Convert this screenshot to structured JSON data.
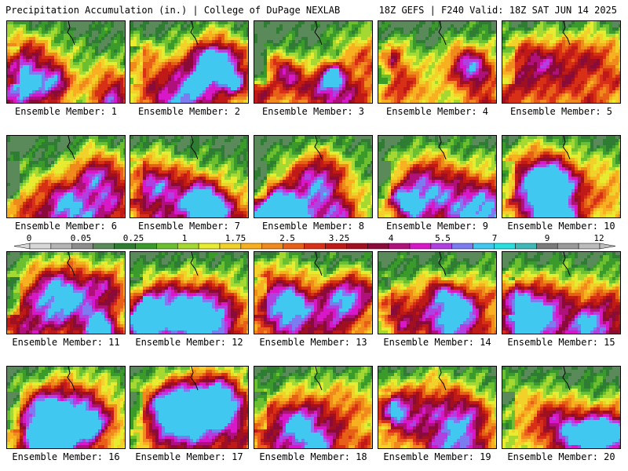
{
  "header": {
    "title": "Precipitation Accumulation (in.) | College of DuPage NEXLAB",
    "run_info": "18Z GEFS | F240 Valid: 18Z SAT JUN 14 2025"
  },
  "panels": [
    {
      "label": "Ensemble Member: 1"
    },
    {
      "label": "Ensemble Member: 2"
    },
    {
      "label": "Ensemble Member: 3"
    },
    {
      "label": "Ensemble Member: 4"
    },
    {
      "label": "Ensemble Member: 5"
    },
    {
      "label": "Ensemble Member: 6"
    },
    {
      "label": "Ensemble Member: 7"
    },
    {
      "label": "Ensemble Member: 8"
    },
    {
      "label": "Ensemble Member: 9"
    },
    {
      "label": "Ensemble Member: 10"
    },
    {
      "label": "Ensemble Member: 11"
    },
    {
      "label": "Ensemble Member: 12"
    },
    {
      "label": "Ensemble Member: 13"
    },
    {
      "label": "Ensemble Member: 14"
    },
    {
      "label": "Ensemble Member: 15"
    },
    {
      "label": "Ensemble Member: 16"
    },
    {
      "label": "Ensemble Member: 17"
    },
    {
      "label": "Ensemble Member: 18"
    },
    {
      "label": "Ensemble Member: 19"
    },
    {
      "label": "Ensemble Member: 20"
    }
  ],
  "colorbar": {
    "tick_labels": [
      "0",
      "0.05",
      "0.25",
      "1",
      "1.75",
      "2.5",
      "3.25",
      "4",
      "5.5",
      "7",
      "9",
      "12"
    ],
    "colors": [
      "#d8d8d8",
      "#b4b4b4",
      "#8c8c8c",
      "#5a8a5a",
      "#2e7d32",
      "#3a9a2a",
      "#6cc030",
      "#a6d832",
      "#e8ec30",
      "#f2d22a",
      "#f8b020",
      "#f08a1c",
      "#e86018",
      "#d83016",
      "#c01a18",
      "#a01020",
      "#8a0a3a",
      "#b0107a",
      "#d818c8",
      "#b040e0",
      "#7c7cf0",
      "#40c8f0",
      "#28e0e0",
      "#40b8b8",
      "#7a7a7a",
      "#9a9a9a",
      "#bcbcbc"
    ]
  }
}
